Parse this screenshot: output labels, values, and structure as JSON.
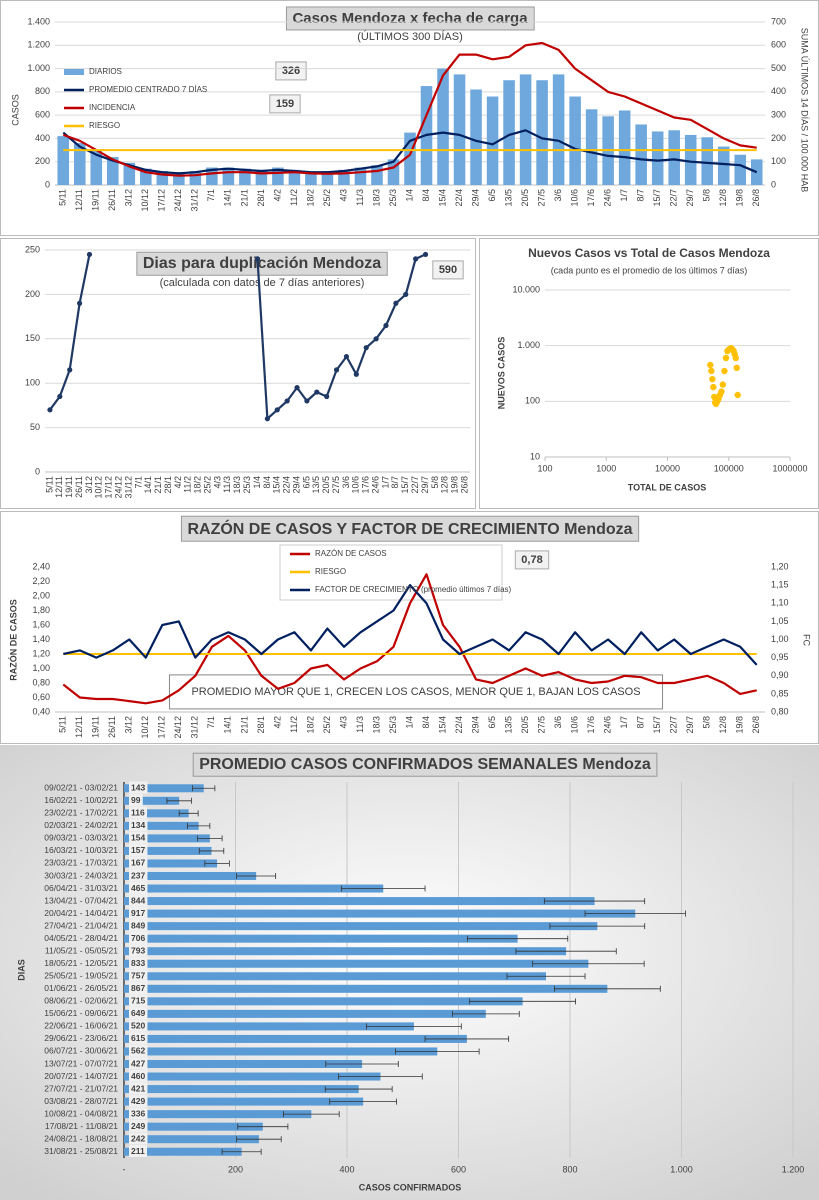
{
  "chart_data": [
    {
      "type": "combo",
      "title": "Casos Mendoza x fecha de carga",
      "subtitle": "(ÚLTIMOS 300 DÍAS)",
      "ylabel": "CASOS",
      "y2label": "SUMA ÚLTIMOS 14 DÍAS / 100.000 HAB",
      "annotations": [
        "326",
        "159"
      ],
      "categories": [
        "5/11",
        "12/11",
        "19/11",
        "26/11",
        "3/12",
        "10/12",
        "17/12",
        "24/12",
        "31/12",
        "7/1",
        "14/1",
        "21/1",
        "28/1",
        "4/2",
        "11/2",
        "18/2",
        "25/2",
        "4/3",
        "11/3",
        "18/3",
        "25/3",
        "1/4",
        "8/4",
        "15/4",
        "22/4",
        "29/4",
        "6/5",
        "13/5",
        "20/5",
        "27/5",
        "3/6",
        "10/6",
        "17/6",
        "24/6",
        "1/7",
        "8/7",
        "15/7",
        "22/7",
        "29/7",
        "5/8",
        "12/8",
        "19/8",
        "26/8"
      ],
      "series": [
        {
          "name": "DIARIOS",
          "kind": "bar",
          "color": "#6fa8dc",
          "values": [
            420,
            360,
            300,
            240,
            190,
            140,
            120,
            110,
            120,
            150,
            150,
            140,
            130,
            150,
            130,
            110,
            120,
            130,
            150,
            170,
            220,
            450,
            850,
            1000,
            950,
            820,
            760,
            900,
            950,
            900,
            950,
            760,
            650,
            590,
            640,
            520,
            460,
            470,
            430,
            410,
            330,
            260,
            220
          ]
        },
        {
          "name": "PROMEDIO CENTRADO 7 DÍAS",
          "kind": "line",
          "color": "#002060",
          "values": [
            450,
            330,
            260,
            210,
            170,
            130,
            110,
            100,
            110,
            130,
            140,
            130,
            120,
            130,
            120,
            110,
            110,
            120,
            140,
            160,
            200,
            380,
            430,
            450,
            430,
            380,
            350,
            430,
            470,
            400,
            380,
            310,
            280,
            250,
            240,
            220,
            210,
            220,
            200,
            190,
            180,
            170,
            110
          ]
        },
        {
          "name": "INCIDENCIA",
          "kind": "line",
          "axis": "y2",
          "color": "#c00000",
          "values": [
            215,
            190,
            150,
            110,
            80,
            55,
            45,
            40,
            42,
            50,
            55,
            55,
            50,
            52,
            55,
            50,
            48,
            50,
            55,
            60,
            75,
            130,
            300,
            470,
            560,
            560,
            540,
            550,
            600,
            610,
            580,
            500,
            450,
            400,
            380,
            350,
            320,
            290,
            280,
            240,
            200,
            170,
            160
          ]
        },
        {
          "name": "RIESGO",
          "kind": "line",
          "axis": "y2",
          "color": "#ffc000",
          "values": [
            150,
            150,
            150,
            150,
            150,
            150,
            150,
            150,
            150,
            150,
            150,
            150,
            150,
            150,
            150,
            150,
            150,
            150,
            150,
            150,
            150,
            150,
            150,
            150,
            150,
            150,
            150,
            150,
            150,
            150,
            150,
            150,
            150,
            150,
            150,
            150,
            150,
            150,
            150,
            150,
            150,
            150,
            150
          ]
        }
      ],
      "ylim": [
        0,
        1400
      ],
      "yticks": [
        0,
        200,
        400,
        600,
        800,
        {
          "value": 1000,
          "label": "1.000"
        },
        {
          "value": 1200,
          "label": "1.200"
        },
        {
          "value": 1400,
          "label": "1.400"
        }
      ],
      "y2lim": [
        0,
        700
      ],
      "y2ticks": [
        0,
        100,
        200,
        300,
        400,
        500,
        600,
        700
      ],
      "grid": true
    },
    {
      "type": "combo",
      "title": "Dias para duplicación Mendoza",
      "subtitle": "(calculada con datos de 7 días anteriores)",
      "annotations": [
        "590"
      ],
      "categories": [
        "5/11",
        "12/11",
        "19/11",
        "26/11",
        "3/12",
        "10/12",
        "17/12",
        "24/12",
        "31/12",
        "7/1",
        "14/1",
        "21/1",
        "28/1",
        "4/2",
        "11/2",
        "18/2",
        "25/2",
        "4/3",
        "11/3",
        "18/3",
        "25/3",
        "1/4",
        "8/4",
        "15/4",
        "22/4",
        "29/4",
        "6/5",
        "13/5",
        "20/5",
        "27/5",
        "3/6",
        "10/6",
        "17/6",
        "24/6",
        "1/7",
        "8/7",
        "15/7",
        "22/7",
        "29/7",
        "5/8",
        "12/8",
        "19/8",
        "26/8"
      ],
      "series": [
        {
          "kind": "line",
          "markers": true,
          "color": "#1f3864",
          "values": [
            70,
            85,
            115,
            190,
            245,
            null,
            null,
            null,
            null,
            null,
            null,
            null,
            null,
            null,
            null,
            null,
            null,
            null,
            null,
            null,
            null,
            240,
            60,
            70,
            80,
            95,
            80,
            90,
            85,
            115,
            130,
            110,
            140,
            150,
            165,
            190,
            200,
            240,
            245,
            null,
            null,
            null,
            null
          ]
        }
      ],
      "ylim": [
        0,
        250
      ],
      "yticks": [
        0,
        50,
        100,
        150,
        200,
        250
      ],
      "grid": true
    },
    {
      "type": "scatter",
      "title": "Nuevos Casos vs Total de Casos Mendoza",
      "subtitle": "(cada punto es el promedio de los últimos 7 días)",
      "xlabel": "TOTAL DE CASOS",
      "ylabel": "NUEVOS CASOS",
      "color": "#ffc000",
      "x": [
        50000,
        52000,
        54000,
        56000,
        58000,
        60000,
        62000,
        65000,
        68000,
        72000,
        76000,
        80000,
        85000,
        90000,
        95000,
        100000,
        105000,
        110000,
        115000,
        120000,
        125000,
        130000,
        135000,
        140000
      ],
      "values": [
        450,
        350,
        250,
        180,
        120,
        95,
        90,
        100,
        110,
        130,
        150,
        200,
        350,
        600,
        800,
        850,
        880,
        900,
        850,
        800,
        700,
        600,
        400,
        130
      ],
      "xlog": true,
      "ylog": true,
      "xlim": [
        100,
        1000000
      ],
      "xticks": [
        100,
        1000,
        10000,
        100000,
        1000000
      ],
      "ylim": [
        10,
        10000
      ],
      "yticks": [
        10,
        100,
        {
          "value": 1000,
          "label": "1.000"
        },
        {
          "value": 10000,
          "label": "10.000"
        }
      ],
      "grid": true
    },
    {
      "type": "combo",
      "title": "RAZÓN DE CASOS Y FACTOR DE CRECIMIENTO Mendoza",
      "ylabel": "RAZÓN DE CASOS",
      "y2label": "FC",
      "annotations": [
        "0,78"
      ],
      "note": "PROMEDIO MAYOR QUE 1, CRECEN LOS CASOS, MENOR QUE 1, BAJAN LOS CASOS",
      "categories": [
        "5/11",
        "12/11",
        "19/11",
        "26/11",
        "3/12",
        "10/12",
        "17/12",
        "24/12",
        "31/12",
        "7/1",
        "14/1",
        "21/1",
        "28/1",
        "4/2",
        "11/2",
        "18/2",
        "25/2",
        "4/3",
        "11/3",
        "18/3",
        "25/3",
        "1/4",
        "8/4",
        "15/4",
        "22/4",
        "29/4",
        "6/5",
        "13/5",
        "20/5",
        "27/5",
        "3/6",
        "10/6",
        "17/6",
        "24/6",
        "1/7",
        "8/7",
        "15/7",
        "22/7",
        "29/7",
        "5/8",
        "12/8",
        "19/8",
        "26/8"
      ],
      "series": [
        {
          "name": "RAZÓN DE CASOS",
          "kind": "line",
          "color": "#c00000",
          "values": [
            0.78,
            0.6,
            0.58,
            0.58,
            0.55,
            0.52,
            0.56,
            0.7,
            0.9,
            1.3,
            1.45,
            1.25,
            0.9,
            0.72,
            0.8,
            1.0,
            1.05,
            0.85,
            1.0,
            1.1,
            1.3,
            1.9,
            2.3,
            1.6,
            1.3,
            0.85,
            0.8,
            0.9,
            1.0,
            0.9,
            0.95,
            0.85,
            0.8,
            0.82,
            0.9,
            0.88,
            0.8,
            0.8,
            0.85,
            0.9,
            0.8,
            0.65,
            0.7
          ]
        },
        {
          "name": "RIESGO",
          "kind": "line",
          "color": "#ffc000",
          "values": [
            1.2,
            1.2,
            1.2,
            1.2,
            1.2,
            1.2,
            1.2,
            1.2,
            1.2,
            1.2,
            1.2,
            1.2,
            1.2,
            1.2,
            1.2,
            1.2,
            1.2,
            1.2,
            1.2,
            1.2,
            1.2,
            1.2,
            1.2,
            1.2,
            1.2,
            1.2,
            1.2,
            1.2,
            1.2,
            1.2,
            1.2,
            1.2,
            1.2,
            1.2,
            1.2,
            1.2,
            1.2,
            1.2,
            1.2,
            1.2,
            1.2,
            1.2,
            1.2
          ]
        },
        {
          "name": "FACTOR DE CRECIMIENTO (promedio últimos 7 días)",
          "kind": "line",
          "axis": "y2",
          "color": "#002060",
          "values": [
            0.96,
            0.97,
            0.95,
            0.97,
            1.0,
            0.95,
            1.04,
            1.05,
            0.95,
            1.0,
            1.02,
            1.0,
            0.96,
            1.0,
            1.02,
            0.97,
            1.03,
            0.98,
            1.02,
            1.05,
            1.08,
            1.15,
            1.1,
            1.0,
            0.96,
            0.98,
            1.0,
            0.97,
            1.02,
            1.0,
            0.96,
            1.02,
            0.97,
            1.0,
            0.96,
            1.02,
            0.97,
            1.0,
            0.96,
            0.98,
            1.0,
            0.98,
            0.93
          ]
        }
      ],
      "ylim": [
        0.4,
        2.4
      ],
      "yticks": [
        {
          "value": 0.4,
          "label": "0,40"
        },
        {
          "value": 0.6,
          "label": "0,60"
        },
        {
          "value": 0.8,
          "label": "0,80"
        },
        {
          "value": 1.0,
          "label": "1,00"
        },
        {
          "value": 1.2,
          "label": "1,20"
        },
        {
          "value": 1.4,
          "label": "1,40"
        },
        {
          "value": 1.6,
          "label": "1,60"
        },
        {
          "value": 1.8,
          "label": "1,80"
        },
        {
          "value": 2.0,
          "label": "2,00"
        },
        {
          "value": 2.2,
          "label": "2,20"
        },
        {
          "value": 2.4,
          "label": "2,40"
        }
      ],
      "y2lim": [
        0.8,
        1.2
      ],
      "y2ticks": [
        {
          "value": 0.8,
          "label": "0,80"
        },
        {
          "value": 0.85,
          "label": "0,85"
        },
        {
          "value": 0.9,
          "label": "0,90"
        },
        {
          "value": 0.95,
          "label": "0,95"
        },
        {
          "value": 1.0,
          "label": "1,00"
        },
        {
          "value": 1.05,
          "label": "1,05"
        },
        {
          "value": 1.1,
          "label": "1,10"
        },
        {
          "value": 1.15,
          "label": "1,15"
        },
        {
          "value": 1.2,
          "label": "1,20"
        }
      ],
      "grid": false
    },
    {
      "type": "hbar",
      "title": "PROMEDIO CASOS CONFIRMADOS SEMANALES Mendoza",
      "xlabel": "CASOS CONFIRMADOS",
      "ylabel": "DIAS",
      "color": "#5b9bd5",
      "categories": [
        "09/02/21 - 03/02/21",
        "16/02/21 - 10/02/21",
        "23/02/21 - 17/02/21",
        "02/03/21 - 24/02/21",
        "09/03/21 - 03/03/21",
        "16/03/21 - 10/03/21",
        "23/03/21 - 17/03/21",
        "30/03/21 - 24/03/21",
        "06/04/21 - 31/03/21",
        "13/04/21 - 07/04/21",
        "20/04/21 - 14/04/21",
        "27/04/21 - 21/04/21",
        "04/05/21 - 28/04/21",
        "11/05/21 - 05/05/21",
        "18/05/21 - 12/05/21",
        "25/05/21 - 19/05/21",
        "01/06/21 - 26/05/21",
        "08/06/21 - 02/06/21",
        "15/06/21 - 09/06/21",
        "22/06/21 - 16/06/21",
        "29/06/21 - 23/06/21",
        "06/07/21 - 30/06/21",
        "13/07/21 - 07/07/21",
        "20/07/21 - 14/07/21",
        "27/07/21 - 21/07/21",
        "03/08/21 - 28/07/21",
        "10/08/21 - 04/08/21",
        "17/08/21 - 11/08/21",
        "24/08/21 - 18/08/21",
        "31/08/21 - 25/08/21"
      ],
      "values": [
        143,
        99,
        116,
        134,
        154,
        157,
        167,
        237,
        465,
        844,
        917,
        849,
        706,
        793,
        833,
        757,
        867,
        715,
        649,
        520,
        615,
        562,
        427,
        460,
        421,
        429,
        336,
        249,
        242,
        211
      ],
      "errors": [
        20,
        22,
        17,
        20,
        22,
        22,
        22,
        35,
        75,
        90,
        90,
        85,
        90,
        90,
        100,
        70,
        95,
        95,
        60,
        85,
        75,
        75,
        65,
        75,
        60,
        60,
        50,
        45,
        40,
        35
      ],
      "xlim": [
        0,
        1200
      ],
      "xticks": [
        {
          "value": 0,
          "label": "-"
        },
        200,
        400,
        600,
        800,
        {
          "value": 1000,
          "label": "1.000"
        },
        {
          "value": 1200,
          "label": "1.200"
        }
      ],
      "grid": true
    }
  ]
}
